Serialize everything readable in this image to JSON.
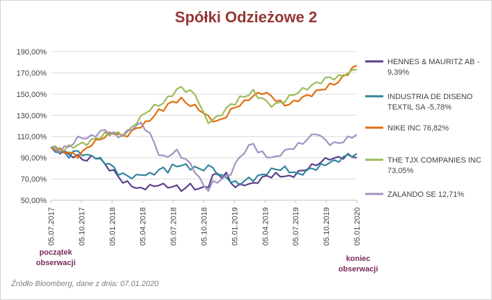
{
  "chart_data": {
    "type": "line",
    "title": "Spółki Odzieżowe 2",
    "xlabel": "",
    "ylabel": "",
    "x_ticks": [
      "05.07.2017",
      "05.10.2017",
      "05.01.2018",
      "05.04.2018",
      "05.07.2018",
      "05.10.2018",
      "05.01.2019",
      "05.04.2019",
      "05.07.2019",
      "05.10.2019",
      "05.01.2020"
    ],
    "y_ticks": [
      "50,00%",
      "70,00%",
      "90,00%",
      "110,00%",
      "130,00%",
      "150,00%",
      "170,00%",
      "190,00%"
    ],
    "ylim": [
      50,
      190
    ],
    "grid": "horizontal",
    "legend_position": "right",
    "series": [
      {
        "name": "HENNES & MAURITZ AB - 9,39%",
        "color": "#5b3e8a",
        "values": [
          100,
          98,
          96,
          95,
          93,
          92,
          91,
          89,
          88,
          90,
          91,
          89,
          83,
          80,
          77,
          72,
          68,
          66,
          64,
          62,
          60,
          62,
          64,
          62,
          66,
          64,
          62,
          64,
          62,
          60,
          62,
          64,
          62,
          60,
          62,
          64,
          72,
          76,
          72,
          74,
          68,
          62,
          64,
          66,
          64,
          66,
          68,
          70,
          74,
          72,
          74,
          74,
          72,
          72,
          74,
          76,
          78,
          80,
          82,
          84,
          86,
          88,
          90,
          89,
          90,
          91,
          92,
          91,
          90
        ]
      },
      {
        "name": "INDUSTRIA DE DISENO TEXTIL SA -5,78%",
        "color": "#31859c",
        "values": [
          100,
          97,
          95,
          94,
          92,
          95,
          96,
          94,
          91,
          93,
          90,
          88,
          86,
          84,
          80,
          76,
          74,
          73,
          72,
          72,
          75,
          74,
          74,
          76,
          78,
          80,
          78,
          82,
          82,
          84,
          82,
          80,
          82,
          78,
          80,
          82,
          80,
          76,
          72,
          72,
          68,
          66,
          66,
          68,
          70,
          70,
          72,
          74,
          76,
          78,
          80,
          79,
          80,
          78,
          76,
          74,
          76,
          78,
          80,
          80,
          82,
          84,
          86,
          86,
          88,
          90,
          92,
          93,
          94
        ]
      },
      {
        "name": "NIKE INC 76,82%",
        "color": "#e46c0a",
        "values": [
          100,
          98,
          97,
          96,
          95,
          93,
          92,
          95,
          99,
          103,
          105,
          108,
          110,
          112,
          114,
          112,
          110,
          112,
          114,
          118,
          120,
          122,
          126,
          130,
          134,
          136,
          140,
          142,
          144,
          145,
          142,
          140,
          138,
          136,
          132,
          128,
          126,
          124,
          126,
          130,
          134,
          138,
          140,
          142,
          146,
          148,
          150,
          152,
          150,
          148,
          145,
          142,
          140,
          141,
          142,
          145,
          147,
          148,
          150,
          152,
          154,
          156,
          158,
          160,
          162,
          166,
          170,
          174,
          177
        ]
      },
      {
        "name": "THE TJX COMPANIES INC 73,05%",
        "color": "#9bbb59",
        "values": [
          100,
          99,
          98,
          98,
          100,
          101,
          102,
          103,
          104,
          106,
          108,
          110,
          112,
          112,
          114,
          112,
          112,
          114,
          118,
          124,
          128,
          132,
          136,
          138,
          140,
          142,
          146,
          150,
          154,
          156,
          154,
          152,
          150,
          142,
          130,
          124,
          126,
          128,
          132,
          136,
          140,
          142,
          146,
          148,
          150,
          152,
          148,
          146,
          142,
          140,
          140,
          142,
          144,
          147,
          150,
          152,
          154,
          156,
          158,
          160,
          162,
          164,
          166,
          165,
          166,
          168,
          170,
          171,
          173
        ]
      },
      {
        "name": "ZALANDO SE 12,71%",
        "color": "#a391c1",
        "values": [
          100,
          99,
          97,
          99,
          101,
          104,
          108,
          110,
          108,
          110,
          112,
          114,
          116,
          114,
          112,
          110,
          112,
          114,
          118,
          120,
          122,
          118,
          112,
          104,
          94,
          90,
          92,
          94,
          96,
          92,
          88,
          84,
          78,
          70,
          64,
          60,
          66,
          68,
          70,
          72,
          76,
          84,
          90,
          96,
          100,
          104,
          96,
          94,
          92,
          90,
          90,
          94,
          96,
          98,
          100,
          102,
          104,
          108,
          110,
          114,
          110,
          106,
          104,
          103,
          104,
          106,
          108,
          110,
          112
        ]
      }
    ]
  },
  "annotations": {
    "start": [
      "początek",
      "obserwacji"
    ],
    "end": [
      "koniec",
      "obserwacji"
    ],
    "source": "Źródło Bloomberg, dane z dnia: 07.01.2020"
  }
}
